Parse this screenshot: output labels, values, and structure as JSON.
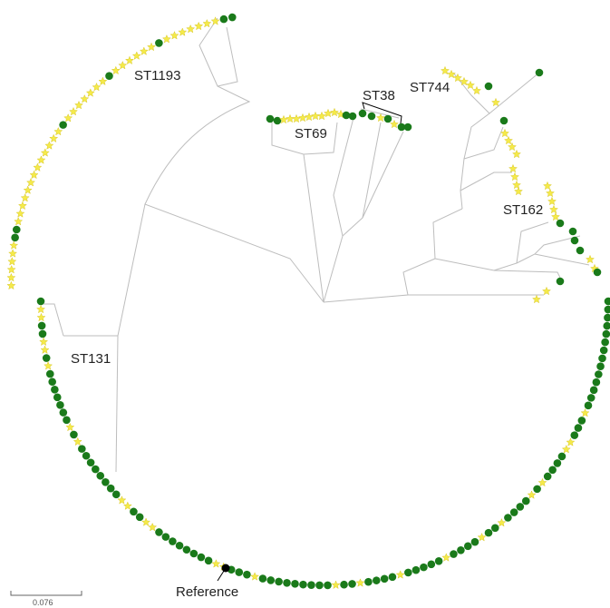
{
  "labels": {
    "clades": [
      "ST1193",
      "ST69",
      "ST38",
      "ST744",
      "ST162",
      "ST131"
    ],
    "reference": "Reference",
    "scale_bar": "0.076"
  }
}
